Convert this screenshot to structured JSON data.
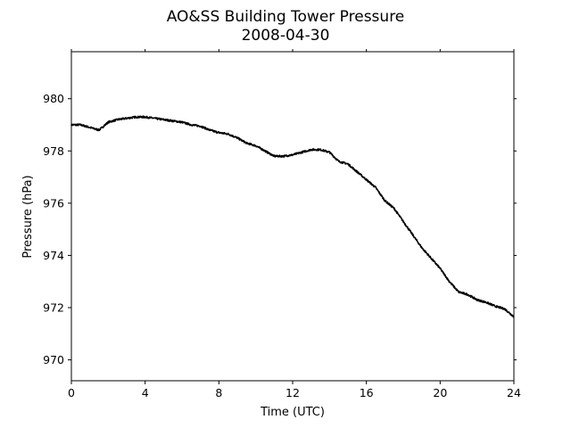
{
  "chart_data": {
    "type": "line",
    "title": "AO&SS Building Tower Pressure",
    "subtitle": "2008-04-30",
    "xlabel": "Time (UTC)",
    "ylabel": "Pressure (hPa)",
    "xlim": [
      0,
      24
    ],
    "ylim": [
      969.2,
      981.8
    ],
    "xticks": [
      0,
      4,
      8,
      12,
      16,
      20,
      24
    ],
    "yticks": [
      970,
      972,
      974,
      976,
      978,
      980
    ],
    "grid": false,
    "line_color": "#000000",
    "series": [
      {
        "x": [
          0,
          0.5,
          1,
          1.5,
          2,
          2.5,
          3,
          3.5,
          4,
          4.5,
          5,
          5.5,
          6,
          6.5,
          7,
          7.5,
          8,
          8.5,
          9,
          9.5,
          10,
          10.5,
          11,
          11.5,
          12,
          12.5,
          13,
          13.5,
          14,
          14.5,
          15,
          15.5,
          16,
          16.5,
          17,
          17.5,
          18,
          18.5,
          19,
          19.5,
          20,
          20.5,
          21,
          21.5,
          22,
          22.5,
          23,
          23.5,
          24
        ],
        "y": [
          979.0,
          979.0,
          978.9,
          978.8,
          979.1,
          979.2,
          979.25,
          979.3,
          979.3,
          979.25,
          979.2,
          979.15,
          979.1,
          979.0,
          978.95,
          978.8,
          978.7,
          978.65,
          978.5,
          978.3,
          978.2,
          978.0,
          977.8,
          977.8,
          977.85,
          977.95,
          978.05,
          978.05,
          977.95,
          977.6,
          977.5,
          977.2,
          976.9,
          976.6,
          976.1,
          975.8,
          975.3,
          974.8,
          974.3,
          973.9,
          973.5,
          973.0,
          972.6,
          972.5,
          972.3,
          972.2,
          972.05,
          971.95,
          971.65
        ]
      }
    ]
  }
}
